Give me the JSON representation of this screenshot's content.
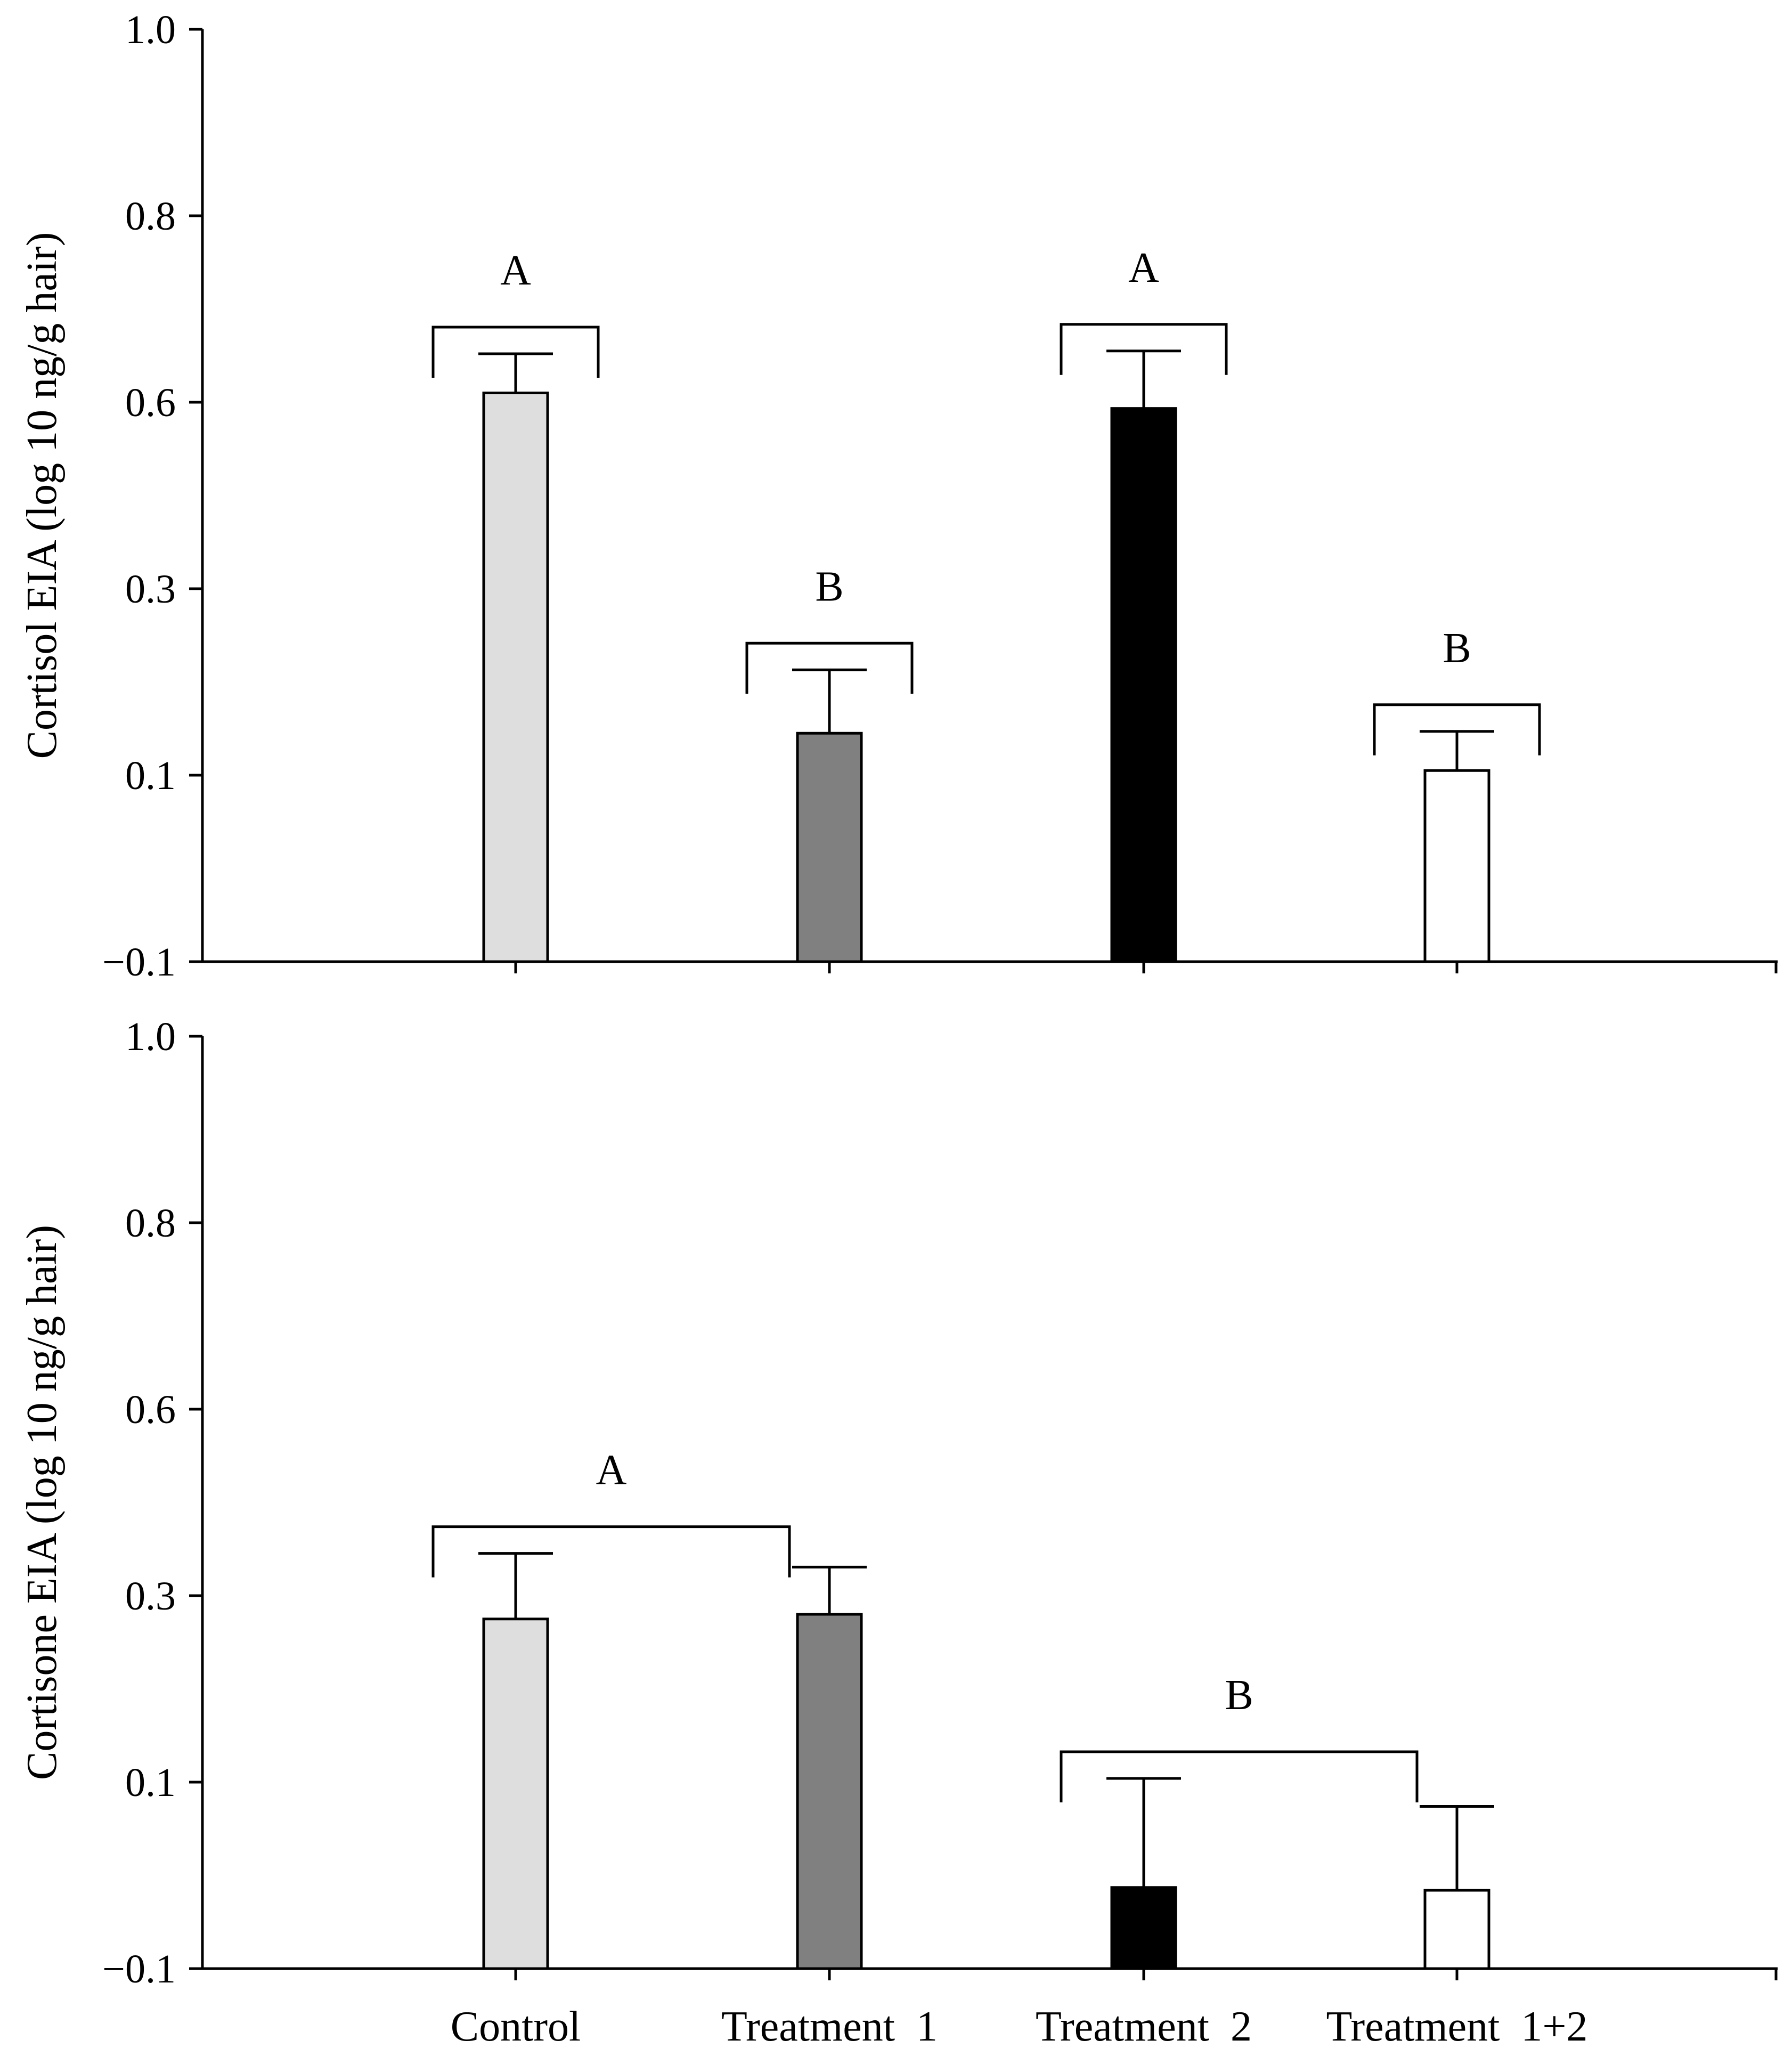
{
  "chart_data": [
    {
      "type": "bar",
      "panel": "top",
      "ylabel": "Cortisol EIA (log 10 ng/g hair)",
      "xlabel": "",
      "ytick_labels": [
        "1.0",
        "0.8",
        "0.6",
        "0.3",
        "0.1",
        "−0.1"
      ],
      "categories": [
        "Control",
        "Treatment  1",
        "Treatment  2",
        "Treatment  1+2"
      ],
      "show_category_labels": false,
      "values": [
        0.61,
        0.145,
        0.59,
        0.105
      ],
      "errors": [
        0.042,
        0.068,
        0.065,
        0.042
      ],
      "colors": [
        "#dedede",
        "#808080",
        "#000000",
        "#ffffff"
      ],
      "significance": [
        {
          "label": "A",
          "categories": [
            0
          ]
        },
        {
          "label": "B",
          "categories": [
            1
          ]
        },
        {
          "label": "A",
          "categories": [
            2
          ]
        },
        {
          "label": "B",
          "categories": [
            3
          ]
        }
      ]
    },
    {
      "type": "bar",
      "panel": "bottom",
      "ylabel": "Cortisone EIA (log 10 ng/g hair)",
      "xlabel": "",
      "ytick_labels": [
        "1.0",
        "0.8",
        "0.6",
        "0.3",
        "0.1",
        "−0.1"
      ],
      "categories": [
        "Control",
        "Treatment  1",
        "Treatment  2",
        "Treatment  1+2"
      ],
      "show_category_labels": true,
      "values": [
        0.275,
        0.28,
        -0.013,
        -0.016
      ],
      "errors": [
        0.093,
        0.066,
        0.117,
        0.09
      ],
      "colors": [
        "#dedede",
        "#808080",
        "#000000",
        "#ffffff"
      ],
      "significance": [
        {
          "label": "A",
          "categories": [
            0,
            1
          ]
        },
        {
          "label": "B",
          "categories": [
            2,
            3
          ]
        }
      ]
    }
  ]
}
